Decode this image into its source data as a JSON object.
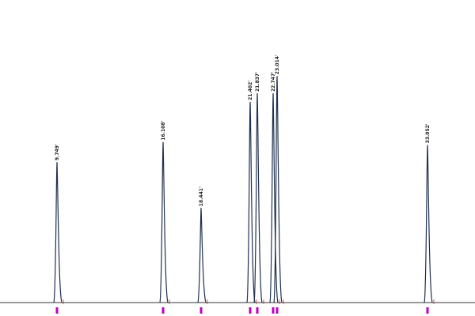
{
  "chart_data": {
    "type": "line",
    "title": "",
    "xlabel": "",
    "ylabel": "",
    "y_units": "relative intensity (% of full scale, estimated)",
    "grid": false,
    "peaks": [
      {
        "label": "9.749'",
        "time": 9.749,
        "height": 49
      },
      {
        "label": "16.108'",
        "time": 16.108,
        "height": 56
      },
      {
        "label": "18.441'",
        "time": 18.441,
        "height": 33
      },
      {
        "label": "21.402'",
        "time": 21.402,
        "height": 70
      },
      {
        "label": "21.837'",
        "time": 21.837,
        "height": 73
      },
      {
        "label": "22.747'",
        "time": 22.747,
        "height": 73
      },
      {
        "label": "23.014'",
        "time": 23.014,
        "height": 79
      },
      {
        "label": "33.052'",
        "time": 33.052,
        "height": 55
      }
    ],
    "colors": {
      "trace": "#1f3050",
      "baseline": "#333333",
      "markers": "#c000c0",
      "integration_ticks": "#cc3333"
    }
  }
}
